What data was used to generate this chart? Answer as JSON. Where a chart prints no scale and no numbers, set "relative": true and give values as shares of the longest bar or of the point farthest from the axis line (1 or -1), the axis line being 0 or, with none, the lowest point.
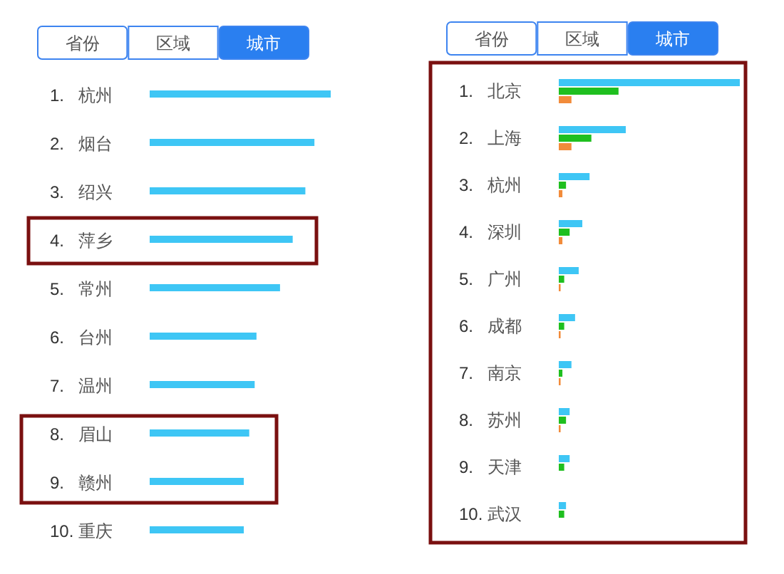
{
  "chart_data": [
    {
      "type": "bar",
      "orientation": "horizontal",
      "relative": true,
      "categories": [
        "1. 杭州",
        "2. 烟台",
        "3. 绍兴",
        "4. 萍乡",
        "5. 常州",
        "6. 台州",
        "7. 温州",
        "8. 眉山",
        "9. 赣州",
        "10. 重庆"
      ],
      "values": [
        1,
        0.91,
        0.86,
        0.79,
        0.72,
        0.59,
        0.58,
        0.55,
        0.52,
        0.52
      ],
      "color": "#3ec6f5",
      "annotations": [
        "省份",
        "区域",
        "城市"
      ]
    },
    {
      "type": "bar",
      "orientation": "horizontal",
      "relative": true,
      "categories": [
        "1. 北京",
        "2. 上海",
        "3. 杭州",
        "4. 深圳",
        "5. 广州",
        "6. 成都",
        "7. 南京",
        "8. 苏州",
        "9. 天津",
        "10. 武汉"
      ],
      "series": [
        {
          "color": "#3ec6f5",
          "values": [
            1,
            0.37,
            0.17,
            0.13,
            0.11,
            0.09,
            0.07,
            0.06,
            0.06,
            0.04
          ]
        },
        {
          "color": "#1fbf1f",
          "values": [
            0.33,
            0.18,
            0.04,
            0.06,
            0.03,
            0.03,
            0.02,
            0.04,
            0.03,
            0.03
          ]
        },
        {
          "color": "#f28b3a",
          "values": [
            0.07,
            0.07,
            0.02,
            0.02,
            0.01,
            0.01,
            0.01,
            0.01,
            null,
            null
          ]
        }
      ],
      "annotations": [
        "省份",
        "区域",
        "城市"
      ]
    }
  ]
}
